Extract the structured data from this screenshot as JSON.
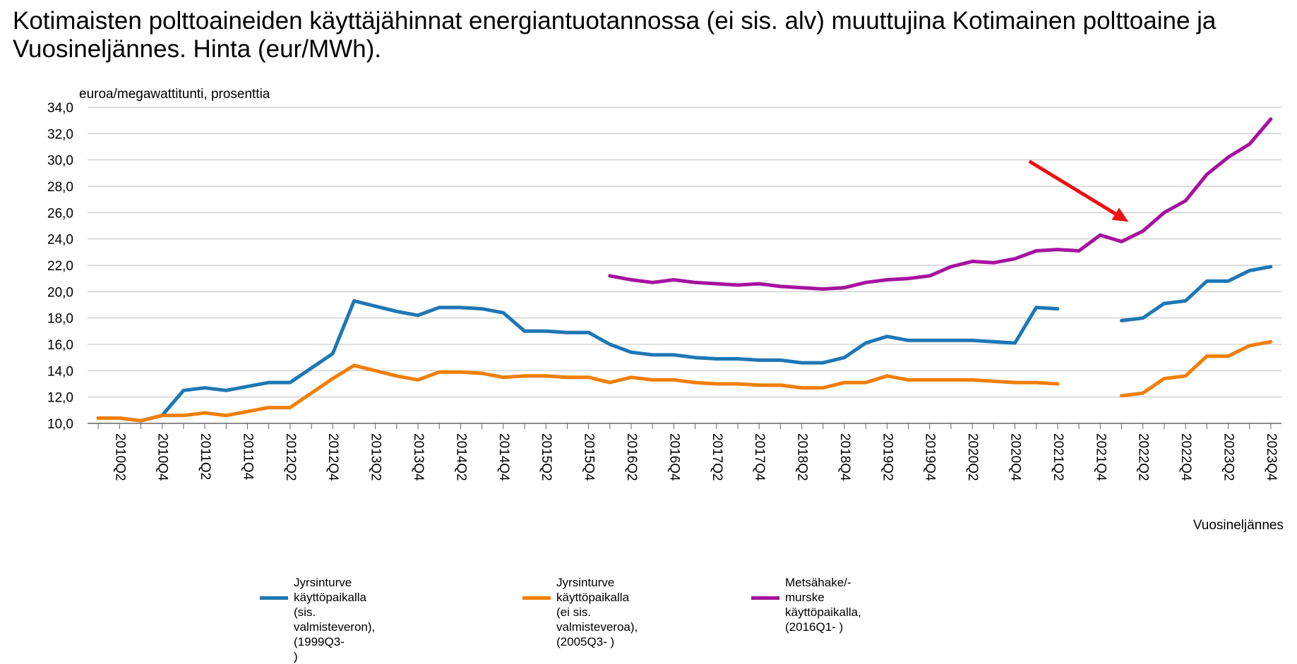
{
  "title": "Kotimaisten polttoaineiden käyttäjähinnat energiantuotannossa (ei sis. alv) muuttujina Kotimainen polttoaine ja Vuosineljännes. Hinta (eur/MWh).",
  "chart_data": {
    "type": "line",
    "title": "Kotimaisten polttoaineiden käyttäjähinnat energiantuotannossa (ei sis. alv) muuttujina Kotimainen polttoaine ja Vuosineljännes. Hinta (eur/MWh).",
    "ylabel": "euroa/megawattitunti, prosenttia",
    "xlabel": "Vuosineljännes",
    "ylim": [
      10,
      34
    ],
    "yticks": [
      "10,0",
      "12,0",
      "14,0",
      "16,0",
      "18,0",
      "20,0",
      "22,0",
      "24,0",
      "26,0",
      "28,0",
      "30,0",
      "32,0",
      "34,0"
    ],
    "x": [
      "2010Q1",
      "2010Q2",
      "2010Q3",
      "2010Q4",
      "2011Q1",
      "2011Q2",
      "2011Q3",
      "2011Q4",
      "2012Q1",
      "2012Q2",
      "2012Q3",
      "2012Q4",
      "2013Q1",
      "2013Q2",
      "2013Q3",
      "2013Q4",
      "2014Q1",
      "2014Q2",
      "2014Q3",
      "2014Q4",
      "2015Q1",
      "2015Q2",
      "2015Q3",
      "2015Q4",
      "2016Q1",
      "2016Q2",
      "2016Q3",
      "2016Q4",
      "2017Q1",
      "2017Q2",
      "2017Q3",
      "2017Q4",
      "2018Q1",
      "2018Q2",
      "2018Q3",
      "2018Q4",
      "2019Q1",
      "2019Q2",
      "2019Q3",
      "2019Q4",
      "2020Q1",
      "2020Q2",
      "2020Q3",
      "2020Q4",
      "2021Q1",
      "2021Q2",
      "2021Q3",
      "2021Q4",
      "2022Q1",
      "2022Q2",
      "2022Q3",
      "2022Q4",
      "2023Q1",
      "2023Q2",
      "2023Q3",
      "2023Q4"
    ],
    "xtick_labels": [
      "2010Q2",
      "2010Q4",
      "2011Q2",
      "2011Q4",
      "2012Q2",
      "2012Q4",
      "2013Q2",
      "2013Q4",
      "2014Q2",
      "2014Q4",
      "2015Q2",
      "2015Q4",
      "2016Q2",
      "2016Q4",
      "2017Q2",
      "2017Q4",
      "2018Q2",
      "2018Q4",
      "2019Q2",
      "2019Q4",
      "2020Q2",
      "2020Q4",
      "2021Q2",
      "2021Q4",
      "2022Q2",
      "2022Q4",
      "2023Q2",
      "2023Q4"
    ],
    "series": [
      {
        "name": "Jyrsinturve käyttöpaikalla (sis. valmisteveron), (1999Q3- )",
        "color": "#1f77b4",
        "values": [
          10.4,
          10.4,
          10.2,
          10.6,
          12.5,
          12.7,
          12.5,
          12.8,
          13.1,
          13.1,
          14.2,
          15.3,
          19.3,
          18.9,
          18.5,
          18.2,
          18.8,
          18.8,
          18.7,
          18.4,
          17.0,
          17.0,
          16.9,
          16.9,
          16.0,
          15.4,
          15.2,
          15.2,
          15.0,
          14.9,
          14.9,
          14.8,
          14.8,
          14.6,
          14.6,
          15.0,
          16.1,
          16.6,
          16.3,
          16.3,
          16.3,
          16.3,
          16.2,
          16.1,
          18.8,
          18.7,
          null,
          null,
          17.8,
          18.0,
          19.1,
          19.3,
          20.8,
          20.8,
          21.6,
          21.9
        ]
      },
      {
        "name": "Jyrsinturve käyttöpaikalla (ei sis. valmisteveroa), (2005Q3- )",
        "color": "#f07f09",
        "values": [
          10.4,
          10.4,
          10.2,
          10.6,
          10.6,
          10.8,
          10.6,
          10.9,
          11.2,
          11.2,
          12.3,
          13.4,
          14.4,
          14.0,
          13.6,
          13.3,
          13.9,
          13.9,
          13.8,
          13.5,
          13.6,
          13.6,
          13.5,
          13.5,
          13.1,
          13.5,
          13.3,
          13.3,
          13.1,
          13.0,
          13.0,
          12.9,
          12.9,
          12.7,
          12.7,
          13.1,
          13.1,
          13.6,
          13.3,
          13.3,
          13.3,
          13.3,
          13.2,
          13.1,
          13.1,
          13.0,
          null,
          null,
          12.1,
          12.3,
          13.4,
          13.6,
          15.1,
          15.1,
          15.9,
          16.2
        ]
      },
      {
        "name": "Metsähake/-murske käyttöpaikalla, (2016Q1- )",
        "color": "#a6129f",
        "values": [
          null,
          null,
          null,
          null,
          null,
          null,
          null,
          null,
          null,
          null,
          null,
          null,
          null,
          null,
          null,
          null,
          null,
          null,
          null,
          null,
          null,
          null,
          null,
          null,
          21.2,
          20.9,
          20.7,
          20.9,
          20.7,
          20.6,
          20.5,
          20.6,
          20.4,
          20.3,
          20.2,
          20.3,
          20.7,
          20.9,
          21.0,
          21.2,
          21.9,
          22.3,
          22.2,
          22.5,
          23.1,
          23.2,
          23.1,
          24.3,
          23.8,
          24.6,
          26.0,
          26.9,
          28.9,
          30.2,
          31.2,
          33.1
        ]
      }
    ],
    "annotations": [
      {
        "type": "arrow",
        "color": "#ee1111",
        "from": {
          "x": "2021Q1",
          "y": 29.9
        },
        "to": {
          "x": "2022Q1",
          "y": 25.3
        }
      }
    ],
    "legend": "bottom"
  },
  "legend_items": [
    {
      "label": "Jyrsinturve käyttöpaikalla\n(sis. valmisteveron), (1999Q3-\n)",
      "color": "#1f77b4"
    },
    {
      "label": "Jyrsinturve käyttöpaikalla\n(ei sis. valmisteveroa),\n(2005Q3- )",
      "color": "#f07f09"
    },
    {
      "label": "Metsähake/-murske käyttöpaikalla,\n(2016Q1- )",
      "color": "#a6129f"
    }
  ]
}
